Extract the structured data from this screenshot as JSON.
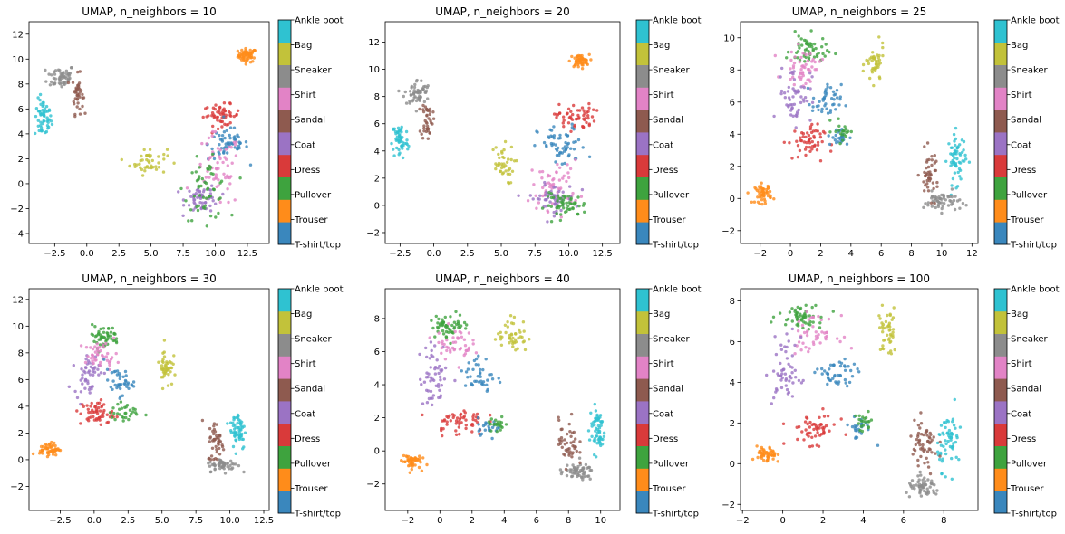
{
  "colors": {
    "T-shirt/top": "#3a87bd",
    "Trouser": "#ff8c1a",
    "Pullover": "#3ea33e",
    "Dress": "#d93a3a",
    "Coat": "#9b73c4",
    "Sandal": "#8e5a4f",
    "Shirt": "#e283c6",
    "Sneaker": "#8c8c8c",
    "Bag": "#c2c23a",
    "Ankle boot": "#2fc2d1"
  },
  "colorbar_labels": [
    "T-shirt/top",
    "Trouser",
    "Pullover",
    "Dress",
    "Coat",
    "Sandal",
    "Shirt",
    "Sneaker",
    "Bag",
    "Ankle boot"
  ],
  "chart_data": [
    {
      "type": "scatter",
      "title": "UMAP, n_neighbors = 10",
      "xlim": [
        -4.5,
        14.2
      ],
      "ylim": [
        -4.8,
        13
      ],
      "xticks": [
        -2.5,
        0,
        2.5,
        5,
        7.5,
        10,
        12.5
      ],
      "xticklabels": [
        "−2.5",
        "0.0",
        "2.5",
        "5.0",
        "7.5",
        "10.0",
        "12.5"
      ],
      "yticks": [
        -4,
        -2,
        0,
        2,
        4,
        6,
        8,
        10,
        12
      ],
      "yticklabels": [
        "−4",
        "−2",
        "0",
        "2",
        "4",
        "6",
        "8",
        "10",
        "12"
      ],
      "clusters": [
        {
          "label": "Trouser",
          "x": 12.5,
          "y": 10.3,
          "sx": 0.6,
          "sy": 0.45,
          "n": 60
        },
        {
          "label": "Ankle boot",
          "x": -3.4,
          "y": 5.2,
          "sx": 0.55,
          "sy": 1.3,
          "n": 55
        },
        {
          "label": "Sneaker",
          "x": -2.0,
          "y": 8.6,
          "sx": 0.9,
          "sy": 0.8,
          "n": 55
        },
        {
          "label": "Sandal",
          "x": -0.7,
          "y": 7.2,
          "sx": 0.35,
          "sy": 1.3,
          "n": 40
        },
        {
          "label": "Bag",
          "x": 4.8,
          "y": 1.8,
          "sx": 1.2,
          "sy": 0.9,
          "n": 45
        },
        {
          "label": "Dress",
          "x": 10.5,
          "y": 5.5,
          "sx": 1.2,
          "sy": 0.7,
          "n": 55
        },
        {
          "label": "T-shirt/top",
          "x": 11.0,
          "y": 3.2,
          "sx": 1.3,
          "sy": 1.1,
          "n": 60
        },
        {
          "label": "Shirt",
          "x": 10.2,
          "y": 1.0,
          "sx": 1.5,
          "sy": 2.5,
          "n": 60
        },
        {
          "label": "Coat",
          "x": 9.0,
          "y": -1.2,
          "sx": 1.1,
          "sy": 0.9,
          "n": 55
        },
        {
          "label": "Pullover",
          "x": 9.3,
          "y": -0.5,
          "sx": 1.4,
          "sy": 2.0,
          "n": 55
        }
      ]
    },
    {
      "type": "scatter",
      "title": "UMAP, n_neighbors = 20",
      "xlim": [
        -3.6,
        13.8
      ],
      "ylim": [
        -2.8,
        13.5
      ],
      "xticks": [
        -2.5,
        0,
        2.5,
        5,
        7.5,
        10,
        12.5
      ],
      "xticklabels": [
        "−2.5",
        "0.0",
        "2.5",
        "5.0",
        "7.5",
        "10.0",
        "12.5"
      ],
      "yticks": [
        -2,
        0,
        2,
        4,
        6,
        8,
        10,
        12
      ],
      "yticklabels": [
        "−2",
        "0",
        "2",
        "4",
        "6",
        "8",
        "10",
        "12"
      ],
      "clusters": [
        {
          "label": "Trouser",
          "x": 10.8,
          "y": 10.6,
          "sx": 0.6,
          "sy": 0.4,
          "n": 55
        },
        {
          "label": "Ankle boot",
          "x": -2.5,
          "y": 4.8,
          "sx": 0.5,
          "sy": 1.2,
          "n": 55
        },
        {
          "label": "Sneaker",
          "x": -1.2,
          "y": 8.3,
          "sx": 0.8,
          "sy": 0.8,
          "n": 55
        },
        {
          "label": "Sandal",
          "x": -0.5,
          "y": 6.3,
          "sx": 0.35,
          "sy": 1.2,
          "n": 40
        },
        {
          "label": "Bag",
          "x": 5.0,
          "y": 3.0,
          "sx": 0.8,
          "sy": 1.2,
          "n": 40
        },
        {
          "label": "Dress",
          "x": 10.5,
          "y": 6.5,
          "sx": 1.2,
          "sy": 0.8,
          "n": 55
        },
        {
          "label": "T-shirt/top",
          "x": 9.5,
          "y": 4.3,
          "sx": 1.5,
          "sy": 1.3,
          "n": 60
        },
        {
          "label": "Shirt",
          "x": 9.0,
          "y": 1.5,
          "sx": 1.5,
          "sy": 1.5,
          "n": 55
        },
        {
          "label": "Coat",
          "x": 8.8,
          "y": 0.5,
          "sx": 1.4,
          "sy": 0.9,
          "n": 55
        },
        {
          "label": "Pullover",
          "x": 9.8,
          "y": 0.0,
          "sx": 1.3,
          "sy": 0.7,
          "n": 55
        }
      ]
    },
    {
      "type": "scatter",
      "title": "UMAP, n_neighbors = 25",
      "xlim": [
        -3.3,
        12.4
      ],
      "ylim": [
        -2.8,
        11
      ],
      "xticks": [
        -2,
        0,
        2,
        4,
        6,
        8,
        10,
        12
      ],
      "xticklabels": [
        "−2",
        "0",
        "2",
        "4",
        "6",
        "8",
        "10",
        "12"
      ],
      "yticks": [
        -2,
        0,
        2,
        4,
        6,
        8,
        10
      ],
      "yticklabels": [
        "−2",
        "0",
        "2",
        "4",
        "6",
        "8",
        "10"
      ],
      "clusters": [
        {
          "label": "Trouser",
          "x": -1.8,
          "y": 0.3,
          "sx": 0.45,
          "sy": 0.5,
          "n": 50
        },
        {
          "label": "Ankle boot",
          "x": 11.0,
          "y": 2.5,
          "sx": 0.5,
          "sy": 1.3,
          "n": 60
        },
        {
          "label": "Sneaker",
          "x": 10.0,
          "y": -0.2,
          "sx": 1.0,
          "sy": 0.5,
          "n": 55
        },
        {
          "label": "Sandal",
          "x": 9.2,
          "y": 1.5,
          "sx": 0.5,
          "sy": 1.2,
          "n": 45
        },
        {
          "label": "Bag",
          "x": 5.6,
          "y": 8.3,
          "sx": 0.5,
          "sy": 1.0,
          "n": 45
        },
        {
          "label": "Pullover",
          "x": 1.2,
          "y": 9.2,
          "sx": 1.0,
          "sy": 0.8,
          "n": 55
        },
        {
          "label": "Shirt",
          "x": 0.8,
          "y": 8.2,
          "sx": 1.0,
          "sy": 0.9,
          "n": 50
        },
        {
          "label": "Coat",
          "x": 0.3,
          "y": 6.5,
          "sx": 0.9,
          "sy": 1.5,
          "n": 55
        },
        {
          "label": "Dress",
          "x": 1.0,
          "y": 3.5,
          "sx": 1.0,
          "sy": 0.9,
          "n": 55
        },
        {
          "label": "T-shirt/top",
          "x": 2.4,
          "y": 6.0,
          "sx": 0.8,
          "sy": 0.9,
          "n": 45
        },
        {
          "label": "T-shirt/top",
          "x": 3.2,
          "y": 3.8,
          "sx": 0.6,
          "sy": 0.5,
          "n": 25
        },
        {
          "label": "Pullover",
          "x": 3.5,
          "y": 4.2,
          "sx": 0.6,
          "sy": 0.6,
          "n": 20
        }
      ]
    },
    {
      "type": "scatter",
      "title": "UMAP, n_neighbors = 30",
      "xlim": [
        -4.8,
        12.9
      ],
      "ylim": [
        -3.8,
        12.8
      ],
      "xticks": [
        -2.5,
        0,
        2.5,
        5,
        7.5,
        10,
        12.5
      ],
      "xticklabels": [
        "−2.5",
        "0.0",
        "2.5",
        "5.0",
        "7.5",
        "10.0",
        "12.5"
      ],
      "yticks": [
        -2,
        0,
        2,
        4,
        6,
        8,
        10,
        12
      ],
      "yticklabels": [
        "−2",
        "0",
        "2",
        "4",
        "6",
        "8",
        "10",
        "12"
      ],
      "clusters": [
        {
          "label": "Trouser",
          "x": -3.3,
          "y": 0.8,
          "sx": 0.6,
          "sy": 0.4,
          "n": 50
        },
        {
          "label": "Ankle boot",
          "x": 10.6,
          "y": 2.3,
          "sx": 0.5,
          "sy": 1.3,
          "n": 60
        },
        {
          "label": "Sneaker",
          "x": 9.5,
          "y": -0.4,
          "sx": 0.9,
          "sy": 0.4,
          "n": 55
        },
        {
          "label": "Sandal",
          "x": 9.0,
          "y": 1.3,
          "sx": 0.5,
          "sy": 1.3,
          "n": 45
        },
        {
          "label": "Bag",
          "x": 5.3,
          "y": 7.0,
          "sx": 0.4,
          "sy": 1.3,
          "n": 45
        },
        {
          "label": "Pullover",
          "x": 0.7,
          "y": 9.2,
          "sx": 1.0,
          "sy": 0.7,
          "n": 55
        },
        {
          "label": "Coat",
          "x": -0.5,
          "y": 6.5,
          "sx": 0.8,
          "sy": 1.3,
          "n": 50
        },
        {
          "label": "Shirt",
          "x": 0.5,
          "y": 7.8,
          "sx": 1.0,
          "sy": 0.8,
          "n": 45
        },
        {
          "label": "Dress",
          "x": 0.2,
          "y": 3.5,
          "sx": 1.0,
          "sy": 0.8,
          "n": 55
        },
        {
          "label": "T-shirt/top",
          "x": 1.8,
          "y": 5.8,
          "sx": 0.9,
          "sy": 0.8,
          "n": 40
        },
        {
          "label": "Pullover",
          "x": 2.3,
          "y": 3.5,
          "sx": 0.9,
          "sy": 0.6,
          "n": 30
        }
      ]
    },
    {
      "type": "scatter",
      "title": "UMAP, n_neighbors = 40",
      "xlim": [
        -3.4,
        11.2
      ],
      "ylim": [
        -3.6,
        9.8
      ],
      "xticks": [
        -2,
        0,
        2,
        4,
        6,
        8,
        10
      ],
      "xticklabels": [
        "−2",
        "0",
        "2",
        "4",
        "6",
        "8",
        "10"
      ],
      "yticks": [
        -2,
        0,
        2,
        4,
        6,
        8
      ],
      "yticklabels": [
        "−2",
        "0",
        "2",
        "4",
        "6",
        "8"
      ],
      "clusters": [
        {
          "label": "Trouser",
          "x": -1.8,
          "y": -0.6,
          "sx": 0.5,
          "sy": 0.4,
          "n": 50
        },
        {
          "label": "Ankle boot",
          "x": 9.8,
          "y": 1.3,
          "sx": 0.4,
          "sy": 1.2,
          "n": 60
        },
        {
          "label": "Sneaker",
          "x": 8.5,
          "y": -1.3,
          "sx": 0.9,
          "sy": 0.4,
          "n": 55
        },
        {
          "label": "Sandal",
          "x": 8.0,
          "y": 0.5,
          "sx": 0.5,
          "sy": 1.2,
          "n": 45
        },
        {
          "label": "Bag",
          "x": 4.5,
          "y": 7.0,
          "sx": 0.8,
          "sy": 0.9,
          "n": 45
        },
        {
          "label": "Pullover",
          "x": 0.6,
          "y": 7.6,
          "sx": 1.0,
          "sy": 0.6,
          "n": 55
        },
        {
          "label": "Coat",
          "x": -0.3,
          "y": 4.5,
          "sx": 0.8,
          "sy": 1.6,
          "n": 55
        },
        {
          "label": "Shirt",
          "x": 0.8,
          "y": 6.5,
          "sx": 1.0,
          "sy": 0.8,
          "n": 45
        },
        {
          "label": "Dress",
          "x": 1.2,
          "y": 1.8,
          "sx": 1.3,
          "sy": 0.7,
          "n": 55
        },
        {
          "label": "T-shirt/top",
          "x": 2.5,
          "y": 4.5,
          "sx": 0.8,
          "sy": 1.0,
          "n": 40
        },
        {
          "label": "T-shirt/top",
          "x": 3.0,
          "y": 1.5,
          "sx": 0.7,
          "sy": 0.4,
          "n": 25
        },
        {
          "label": "Pullover",
          "x": 3.6,
          "y": 1.6,
          "sx": 0.5,
          "sy": 0.4,
          "n": 20
        }
      ]
    },
    {
      "type": "scatter",
      "title": "UMAP, n_neighbors = 100",
      "xlim": [
        -2.1,
        9.7
      ],
      "ylim": [
        -2.3,
        8.6
      ],
      "xticks": [
        -2,
        0,
        2,
        4,
        6,
        8
      ],
      "xticklabels": [
        "−2",
        "0",
        "2",
        "4",
        "6",
        "8"
      ],
      "yticks": [
        -2,
        0,
        2,
        4,
        6,
        8
      ],
      "yticklabels": [
        "−2",
        "0",
        "2",
        "4",
        "6",
        "8"
      ],
      "clusters": [
        {
          "label": "Trouser",
          "x": -0.8,
          "y": 0.4,
          "sx": 0.4,
          "sy": 0.35,
          "n": 50
        },
        {
          "label": "Ankle boot",
          "x": 8.3,
          "y": 1.2,
          "sx": 0.5,
          "sy": 1.2,
          "n": 60
        },
        {
          "label": "Sneaker",
          "x": 7.0,
          "y": -1.2,
          "sx": 0.7,
          "sy": 0.4,
          "n": 55
        },
        {
          "label": "Sandal",
          "x": 7.0,
          "y": 0.8,
          "sx": 0.6,
          "sy": 1.1,
          "n": 55
        },
        {
          "label": "Bag",
          "x": 5.2,
          "y": 6.5,
          "sx": 0.4,
          "sy": 1.0,
          "n": 45
        },
        {
          "label": "Pullover",
          "x": 0.9,
          "y": 7.3,
          "sx": 0.9,
          "sy": 0.5,
          "n": 55
        },
        {
          "label": "Shirt",
          "x": 1.5,
          "y": 6.4,
          "sx": 1.0,
          "sy": 0.7,
          "n": 45
        },
        {
          "label": "Coat",
          "x": 0.2,
          "y": 4.5,
          "sx": 0.6,
          "sy": 1.5,
          "n": 55
        },
        {
          "label": "Dress",
          "x": 1.5,
          "y": 1.7,
          "sx": 1.0,
          "sy": 0.6,
          "n": 55
        },
        {
          "label": "T-shirt/top",
          "x": 2.7,
          "y": 4.3,
          "sx": 0.8,
          "sy": 0.7,
          "n": 45
        },
        {
          "label": "T-shirt/top",
          "x": 3.8,
          "y": 1.8,
          "sx": 0.6,
          "sy": 0.5,
          "n": 25
        },
        {
          "label": "Pullover",
          "x": 4.0,
          "y": 2.0,
          "sx": 0.4,
          "sy": 0.4,
          "n": 20
        }
      ]
    }
  ]
}
